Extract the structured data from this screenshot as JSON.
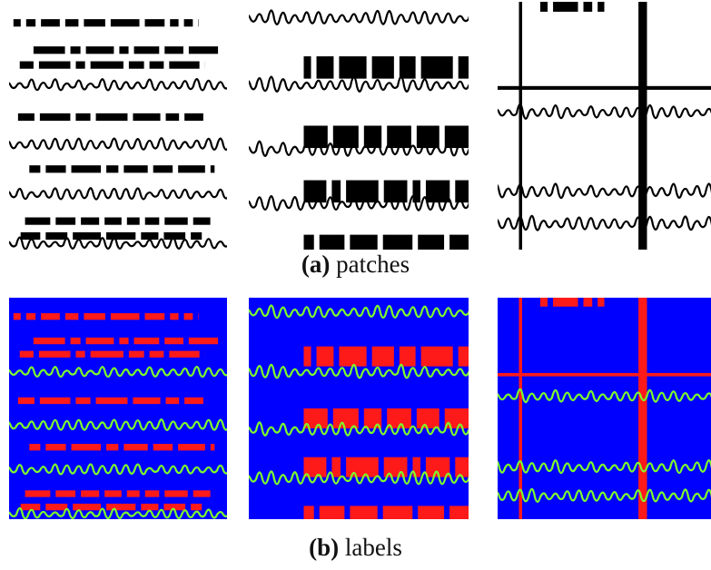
{
  "figure": {
    "panels": [
      {
        "label": "(a)",
        "caption": "patches"
      },
      {
        "label": "(b)",
        "caption": "labels"
      }
    ]
  }
}
